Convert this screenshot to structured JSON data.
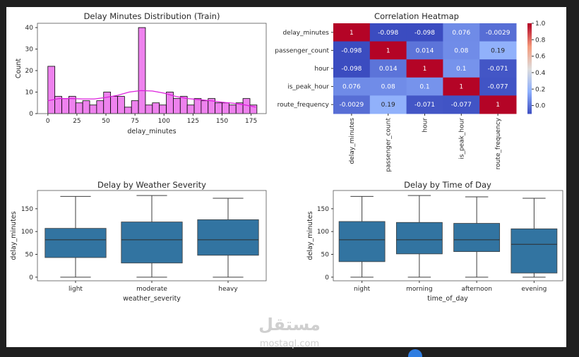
{
  "chart_data": [
    {
      "type": "bar",
      "title": "Delay Minutes Distribution (Train)",
      "xlabel": "delay_minutes",
      "ylabel": "Count",
      "bin_start": 0,
      "bin_width": 6,
      "counts": [
        22,
        8,
        7,
        8,
        5,
        6,
        4,
        6,
        10,
        8,
        8,
        3,
        6,
        40,
        4,
        5,
        4,
        10,
        7,
        8,
        4,
        7,
        6,
        7,
        5,
        5,
        4,
        5,
        7,
        4
      ],
      "kde": {
        "x": [
          0,
          10,
          20,
          30,
          40,
          50,
          60,
          70,
          80,
          90,
          100,
          110,
          120,
          130,
          140,
          150,
          160,
          170,
          179
        ],
        "y": [
          6,
          7,
          7,
          6.8,
          6.8,
          7.5,
          8.5,
          10,
          10.7,
          10.5,
          9.5,
          8,
          7,
          6.5,
          6,
          5.3,
          4.8,
          4,
          3
        ]
      },
      "xticks": [
        0,
        25,
        50,
        75,
        100,
        125,
        150,
        175
      ],
      "yticks": [
        0,
        10,
        20,
        30,
        40
      ],
      "xlim": [
        -9,
        188
      ],
      "ylim": [
        0,
        42
      ],
      "color": "#ee82ee",
      "kde_color": "#dd22dd"
    },
    {
      "type": "heatmap",
      "title": "Correlation Heatmap",
      "labels": [
        "delay_minutes",
        "passenger_count",
        "hour",
        "is_peak_hour",
        "route_frequency"
      ],
      "values": [
        [
          1,
          -0.098,
          -0.098,
          0.076,
          -0.0029
        ],
        [
          -0.098,
          1,
          0.014,
          0.08,
          0.19
        ],
        [
          -0.098,
          0.014,
          1,
          0.1,
          -0.071
        ],
        [
          0.076,
          0.08,
          0.1,
          1,
          -0.077
        ],
        [
          -0.0029,
          0.19,
          -0.071,
          -0.077,
          1
        ]
      ],
      "colormap": "coolwarm",
      "vmin": -0.098,
      "vmax": 1.0,
      "colorbar_ticks": [
        "0.0",
        "0.2",
        "0.4",
        "0.6",
        "0.8",
        "1.0"
      ]
    },
    {
      "type": "box",
      "title": "Delay by Weather Severity",
      "xlabel": "weather_severity",
      "ylabel": "delay_minutes",
      "categories": [
        "light",
        "moderate",
        "heavy"
      ],
      "stats": [
        {
          "min": 0,
          "q1": 43,
          "median": 82,
          "q3": 107,
          "max": 177
        },
        {
          "min": 0,
          "q1": 31,
          "median": 82,
          "q3": 121,
          "max": 179
        },
        {
          "min": 0,
          "q1": 48,
          "median": 82,
          "q3": 126,
          "max": 173
        }
      ],
      "yticks": [
        0,
        50,
        100,
        150
      ],
      "ylim": [
        -8,
        190
      ],
      "color": "#3274a1"
    },
    {
      "type": "box",
      "title": "Delay by Time of Day",
      "xlabel": "time_of_day",
      "ylabel": "delay_minutes",
      "categories": [
        "night",
        "morning",
        "afternoon",
        "evening"
      ],
      "stats": [
        {
          "min": 0,
          "q1": 34,
          "median": 82,
          "q3": 122,
          "max": 177
        },
        {
          "min": 0,
          "q1": 51,
          "median": 82,
          "q3": 120,
          "max": 179
        },
        {
          "min": 0,
          "q1": 56,
          "median": 82,
          "q3": 118,
          "max": 176
        },
        {
          "min": 0,
          "q1": 9,
          "median": 72,
          "q3": 106,
          "max": 173
        }
      ],
      "yticks": [
        0,
        50,
        100,
        150
      ],
      "ylim": [
        -8,
        190
      ],
      "color": "#3274a1"
    }
  ],
  "watermark": {
    "arabic": "مستقل",
    "latin": "mostaql.com"
  }
}
